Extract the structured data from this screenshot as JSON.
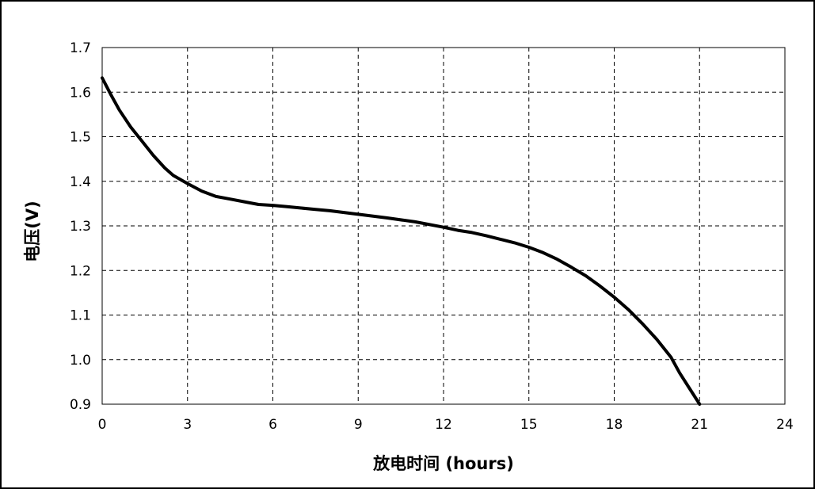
{
  "chart_data": {
    "type": "line",
    "title": "",
    "xlabel": "放电时间 (hours)",
    "ylabel": "电压(V)",
    "xlim": [
      0,
      24
    ],
    "ylim": [
      0.9,
      1.7
    ],
    "xticks": [
      0,
      3,
      6,
      9,
      12,
      15,
      18,
      21,
      24
    ],
    "yticks": [
      0.9,
      1.0,
      1.1,
      1.2,
      1.3,
      1.4,
      1.5,
      1.6,
      1.7
    ],
    "xtick_labels": [
      "0",
      "3",
      "6",
      "9",
      "12",
      "15",
      "18",
      "21",
      "24"
    ],
    "ytick_labels": [
      "0.9",
      "1.0",
      "1.1",
      "1.2",
      "1.3",
      "1.4",
      "1.5",
      "1.6",
      "1.7"
    ],
    "grid": true,
    "grid_style": "dashed",
    "line_color": "#000000",
    "series": [
      {
        "x": [
          0,
          0.3,
          0.6,
          1.0,
          1.4,
          1.8,
          2.2,
          2.5,
          3.0,
          3.5,
          4.0,
          4.5,
          5.0,
          5.5,
          6.0,
          6.5,
          7.0,
          7.5,
          8.0,
          9.0,
          10.0,
          11.0,
          12.0,
          12.5,
          13.0,
          13.5,
          14.0,
          14.5,
          15.0,
          15.5,
          16.0,
          16.5,
          17.0,
          17.5,
          18.0,
          18.5,
          19.0,
          19.5,
          20.0,
          20.3,
          20.6,
          21.0
        ],
        "y": [
          1.632,
          1.595,
          1.56,
          1.522,
          1.49,
          1.458,
          1.43,
          1.413,
          1.395,
          1.378,
          1.366,
          1.36,
          1.354,
          1.348,
          1.346,
          1.343,
          1.34,
          1.337,
          1.334,
          1.326,
          1.318,
          1.309,
          1.297,
          1.29,
          1.285,
          1.278,
          1.27,
          1.262,
          1.252,
          1.24,
          1.225,
          1.207,
          1.188,
          1.165,
          1.14,
          1.112,
          1.08,
          1.045,
          1.005,
          0.97,
          0.94,
          0.9
        ]
      }
    ]
  }
}
